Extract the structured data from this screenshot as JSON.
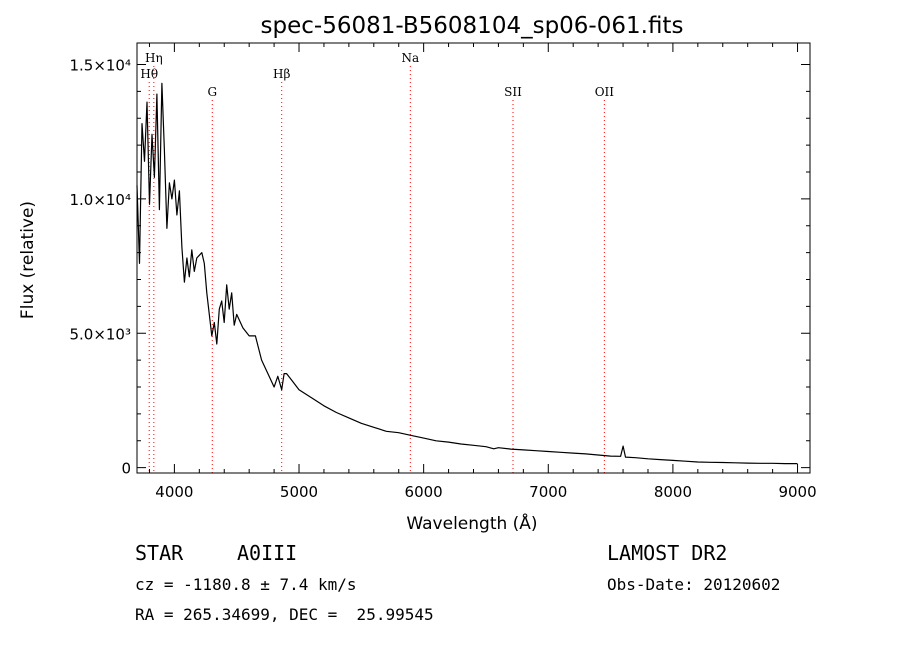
{
  "chart_data": {
    "type": "line",
    "title": "spec-56081-B5608104_sp06-061.fits",
    "xlabel": "Wavelength (Å)",
    "ylabel": "Flux (relative)",
    "xlim": [
      3700,
      9100
    ],
    "ylim": [
      -200,
      15800
    ],
    "x_ticks": [
      4000,
      5000,
      6000,
      7000,
      8000,
      9000
    ],
    "x_tick_labels": [
      "4000",
      "5000",
      "6000",
      "7000",
      "8000",
      "9000"
    ],
    "y_ticks": [
      0,
      5000,
      10000,
      15000
    ],
    "y_tick_labels": [
      "0",
      "5.0×10³",
      "1.0×10⁴",
      "1.5×10⁴"
    ],
    "line_color": "#000000",
    "marker_color": "#ff0000",
    "series": [
      {
        "x": [
          3700,
          3720,
          3740,
          3760,
          3780,
          3800,
          3820,
          3840,
          3860,
          3880,
          3900,
          3920,
          3940,
          3960,
          3980,
          4000,
          4020,
          4040,
          4060,
          4080,
          4100,
          4120,
          4140,
          4160,
          4180,
          4200,
          4220,
          4240,
          4260,
          4280,
          4300,
          4320,
          4340,
          4360,
          4380,
          4400,
          4420,
          4440,
          4460,
          4480,
          4500,
          4550,
          4600,
          4650,
          4700,
          4750,
          4800,
          4830,
          4861,
          4880,
          4900,
          4950,
          5000,
          5100,
          5200,
          5300,
          5400,
          5500,
          5600,
          5700,
          5800,
          5900,
          6000,
          6100,
          6200,
          6300,
          6400,
          6500,
          6563,
          6600,
          6700,
          6800,
          6900,
          7000,
          7100,
          7200,
          7300,
          7400,
          7500,
          7580,
          7600,
          7620,
          7700,
          7800,
          7900,
          8000,
          8100,
          8200,
          8300,
          8400,
          8500,
          8600,
          8700,
          8800,
          8900,
          9000
        ],
        "y": [
          10500,
          7600,
          12800,
          11400,
          13600,
          9800,
          12400,
          10800,
          13900,
          9600,
          14300,
          11800,
          8900,
          10600,
          10000,
          10700,
          9400,
          10300,
          8200,
          6900,
          7800,
          7100,
          8100,
          7300,
          7800,
          7900,
          8000,
          7600,
          6500,
          5700,
          4900,
          5400,
          4600,
          5900,
          6200,
          5400,
          6800,
          5900,
          6500,
          5300,
          5700,
          5200,
          4900,
          4900,
          4000,
          3500,
          3000,
          3400,
          2900,
          3500,
          3500,
          3200,
          2900,
          2600,
          2300,
          2050,
          1850,
          1650,
          1500,
          1350,
          1300,
          1200,
          1100,
          1000,
          950,
          880,
          830,
          780,
          700,
          740,
          690,
          660,
          630,
          600,
          570,
          540,
          510,
          470,
          430,
          420,
          800,
          390,
          370,
          330,
          300,
          270,
          240,
          210,
          200,
          190,
          180,
          170,
          160,
          160,
          150,
          150
        ]
      }
    ],
    "line_markers": [
      {
        "label": "Hη",
        "x": 3835,
        "row": 0
      },
      {
        "label": "Hθ",
        "x": 3798,
        "row": 1
      },
      {
        "label": "G",
        "x": 4304,
        "row": 2
      },
      {
        "label": "Hβ",
        "x": 4861,
        "row": 1
      },
      {
        "label": "Na",
        "x": 5893,
        "row": 0
      },
      {
        "label": "SII",
        "x": 6717,
        "row": 2
      },
      {
        "label": "OII",
        "x": 7450,
        "row": 2
      }
    ]
  },
  "info": {
    "object_class": "STAR",
    "subclass": "A0III",
    "survey": "LAMOST DR2",
    "cz_line": "cz = -1180.8 ± 7.4 km/s",
    "obs_date": "Obs-Date: 20120602",
    "coords_line": "RA = 265.34699, DEC =  25.99545"
  }
}
